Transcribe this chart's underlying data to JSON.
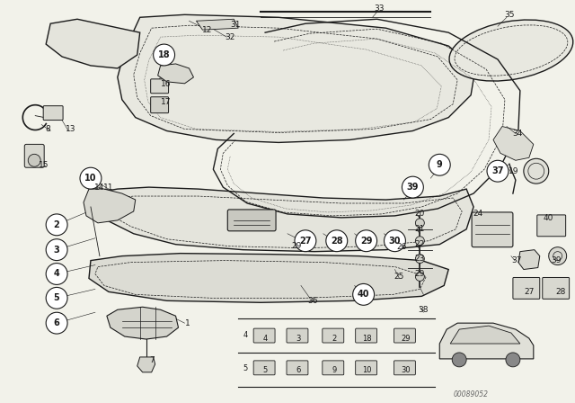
{
  "title": "",
  "background_color": "#f2f2ea",
  "fig_width": 6.4,
  "fig_height": 4.48,
  "dpi": 100,
  "watermark": "00089052",
  "line_color": "#1a1a1a",
  "lw_main": 1.0,
  "lw_thin": 0.6,
  "lw_dashed": 0.5
}
